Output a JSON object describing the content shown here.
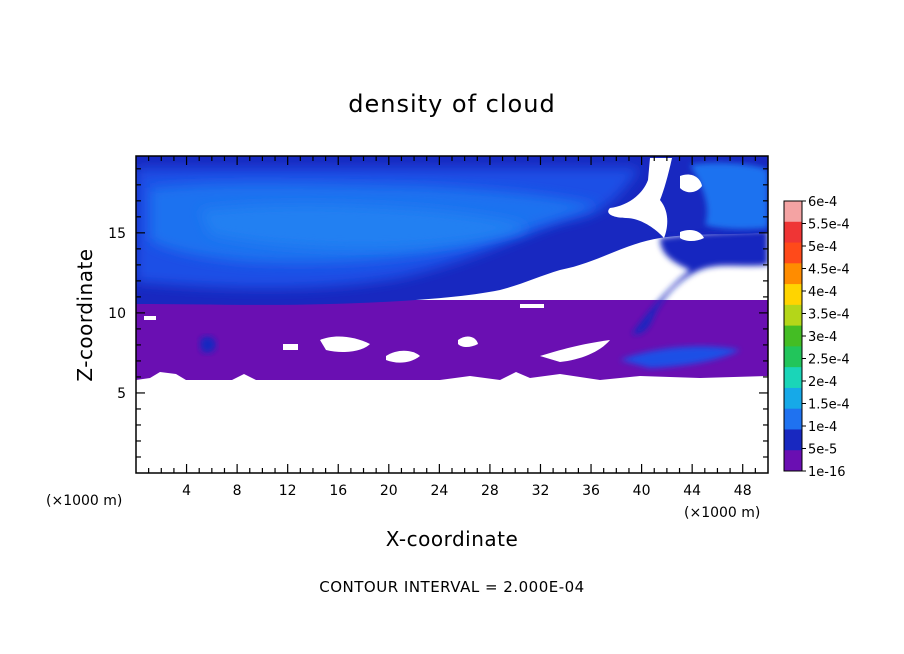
{
  "chart_data": {
    "type": "heatmap",
    "title": "density of cloud",
    "xlabel": "X-coordinate",
    "ylabel": "Z-coordinate",
    "x_unit": "(×1000 m)",
    "x_unit_right": "(×1000 m)",
    "xlim": [
      0,
      50
    ],
    "ylim": [
      0,
      19.8
    ],
    "x_ticks": [
      4,
      8,
      12,
      16,
      20,
      24,
      28,
      32,
      36,
      40,
      44,
      48
    ],
    "y_ticks": [
      5,
      10,
      15
    ],
    "footer": "CONTOUR INTERVAL = 2.000E-04",
    "colorbar": {
      "labels": [
        "6e-4",
        "5.5e-4",
        "5e-4",
        "4.5e-4",
        "4e-4",
        "3.5e-4",
        "3e-4",
        "2.5e-4",
        "2e-4",
        "1.5e-4",
        "1e-4",
        "5e-5",
        "1e-16"
      ],
      "colors": [
        "#f4a3a3",
        "#ef3535",
        "#ff4a1a",
        "#ff8c00",
        "#ffd400",
        "#b4d619",
        "#44bd24",
        "#22c55b",
        "#1ad5b8",
        "#16a9e8",
        "#1f72f0",
        "#1828c0",
        "#6a0fb2"
      ]
    },
    "regions": [
      {
        "name": "cloud-free-region",
        "color": "#ffffff",
        "z_range": [
          0,
          6
        ]
      },
      {
        "name": "low-density-layer",
        "color": "#6a0fb2",
        "z_range": [
          6,
          10.5
        ]
      },
      {
        "name": "upper-cloud-layer",
        "color": "#1f72f0",
        "z_range": [
          10.5,
          19.8
        ]
      }
    ]
  }
}
